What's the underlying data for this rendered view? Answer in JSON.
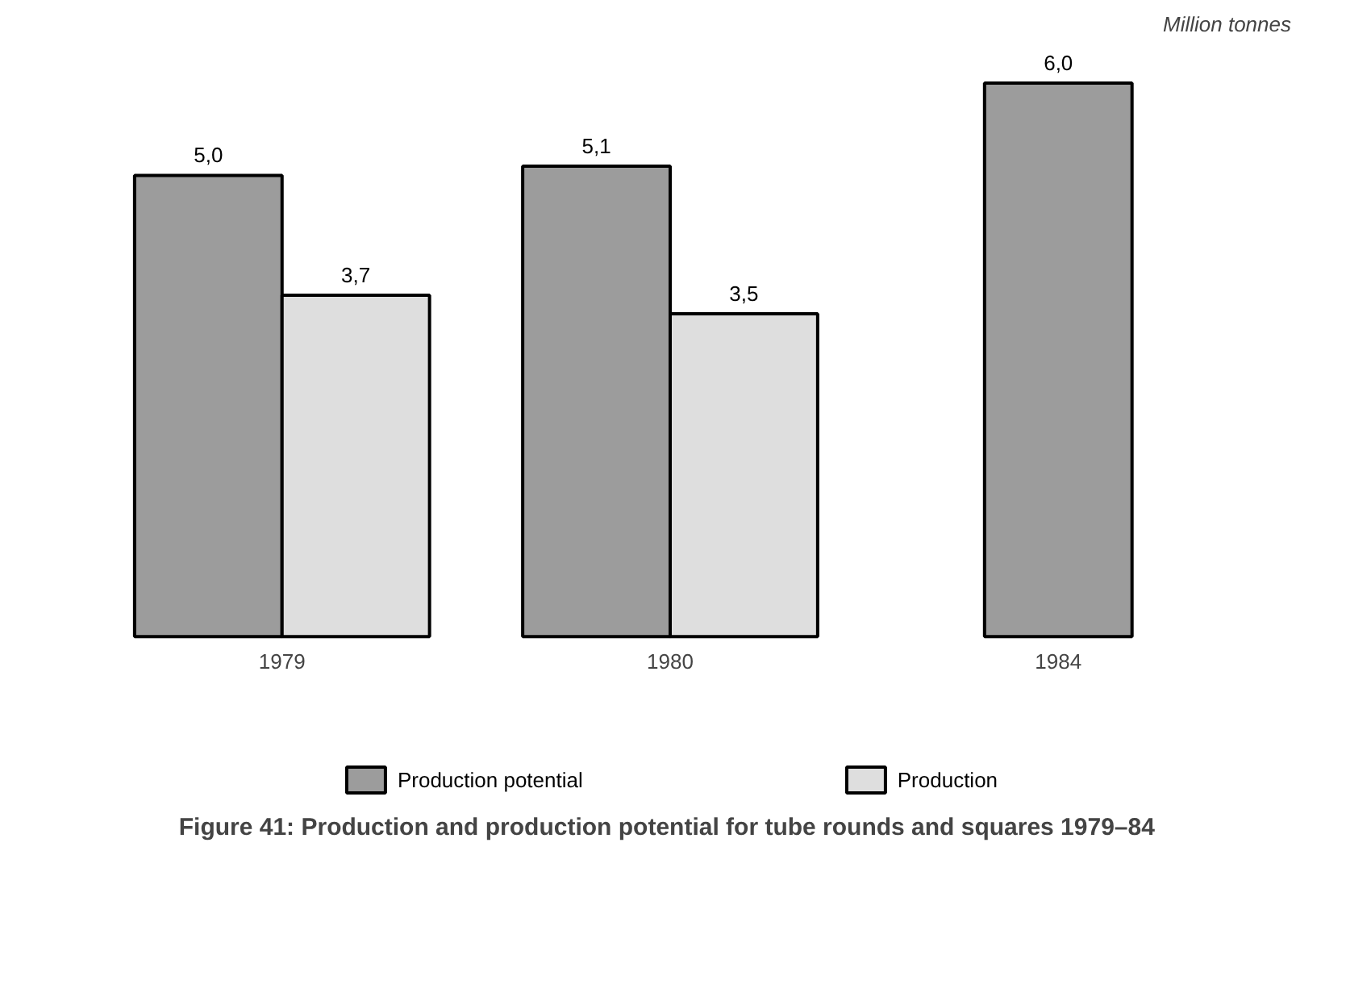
{
  "chart_data": {
    "type": "bar",
    "title": "Figure 41:  Production and production potential for tube rounds and squares 1979–84",
    "ylabel": "Million tonnes",
    "categories": [
      "1979",
      "1980",
      "1984"
    ],
    "series": [
      {
        "name": "Production potential",
        "color": "#9c9c9c",
        "values": [
          5.0,
          5.1,
          6.0
        ],
        "value_labels": [
          "5,0",
          "5,1",
          "6,0"
        ]
      },
      {
        "name": "Production",
        "color": "#dedede",
        "values": [
          3.7,
          3.5,
          null
        ],
        "value_labels": [
          "3,7",
          "3,5",
          null
        ]
      }
    ],
    "grid": false,
    "legend": "bottom",
    "tick_labels": "x"
  }
}
